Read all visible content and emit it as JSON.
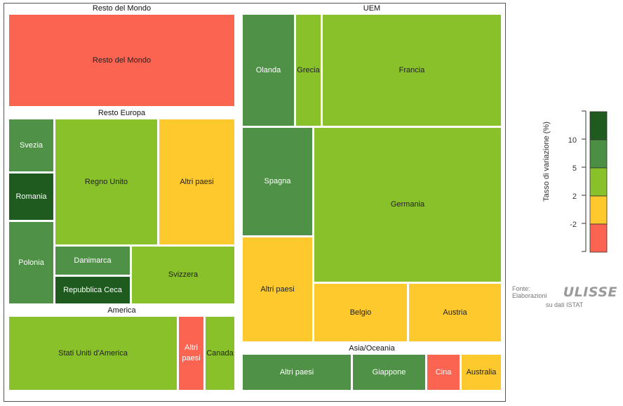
{
  "chart_data": {
    "type": "treemap",
    "groups": [
      {
        "name": "Resto del Mondo",
        "items": [
          {
            "label": "Resto del Mondo",
            "class": "< -2"
          }
        ]
      },
      {
        "name": "UEM",
        "items": [
          {
            "label": "Olanda",
            "class": "5 – 10"
          },
          {
            "label": "Grecia",
            "class": "2 – 5"
          },
          {
            "label": "Francia",
            "class": "2 – 5"
          },
          {
            "label": "Spagna",
            "class": "5 – 10"
          },
          {
            "label": "Germania",
            "class": "2 – 5"
          },
          {
            "label": "Altri paesi",
            "class": "-2 – 2"
          },
          {
            "label": "Belgio",
            "class": "-2 – 2"
          },
          {
            "label": "Austria",
            "class": "-2 – 2"
          }
        ]
      },
      {
        "name": "Resto Europa",
        "items": [
          {
            "label": "Svezia",
            "class": "5 – 10"
          },
          {
            "label": "Romania",
            "class": "> 10"
          },
          {
            "label": "Polonia",
            "class": "5 – 10"
          },
          {
            "label": "Regno Unito",
            "class": "2 – 5"
          },
          {
            "label": "Altri paesi",
            "class": "-2 – 2"
          },
          {
            "label": "Danimarca",
            "class": "5 – 10"
          },
          {
            "label": "Repubblica Ceca",
            "class": "> 10"
          },
          {
            "label": "Svizzera",
            "class": "2 – 5"
          }
        ]
      },
      {
        "name": "America",
        "items": [
          {
            "label": "Stati Uniti d'America",
            "class": "2 – 5"
          },
          {
            "label": "Altri paesi",
            "class": "< -2"
          },
          {
            "label": "Canada",
            "class": "2 – 5"
          }
        ]
      },
      {
        "name": "Asia/Oceania",
        "items": [
          {
            "label": "Altri paesi",
            "class": "5 – 10"
          },
          {
            "label": "Giappone",
            "class": "5 – 10"
          },
          {
            "label": "Cina",
            "class": "< -2"
          },
          {
            "label": "Australia",
            "class": "-2 – 2"
          }
        ]
      }
    ],
    "legend": {
      "title": "Tasso di variazione (%)",
      "ticks": [
        "10",
        "5",
        "2",
        "-2"
      ],
      "colors": [
        "#1f5a1f",
        "#4a8f44",
        "#88c129",
        "#fdc92d",
        "#fc6452"
      ]
    }
  },
  "colors": {
    "< -2": "#fc6452",
    "-2 – 2": "#fdc92d",
    "2 – 5": "#88c129",
    "5 – 10": "#4f9147",
    "> 10": "#1f5a1f"
  },
  "source": {
    "prefix": "Fonte: Elaborazioni",
    "logo": "ULISSE",
    "suffix": "su dati ISTAT"
  }
}
